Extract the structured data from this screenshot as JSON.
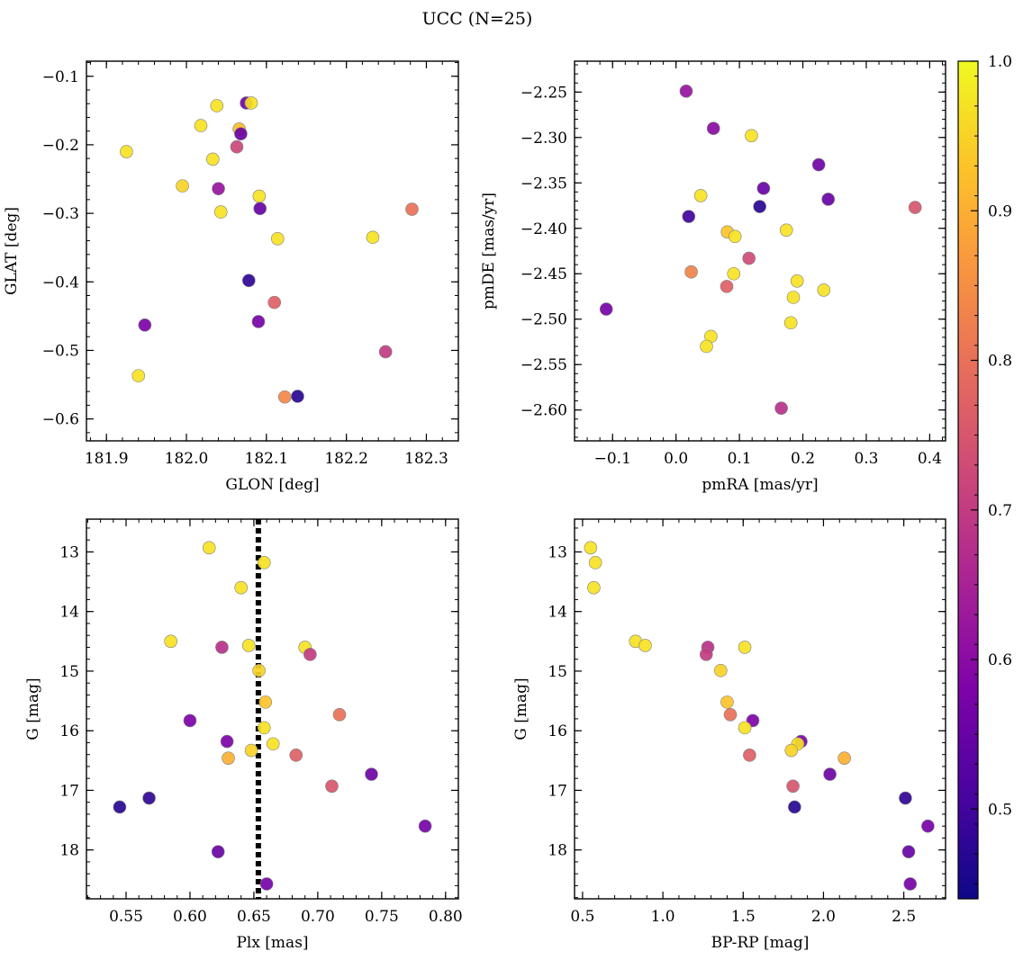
{
  "title": "UCC (N=25)",
  "colorbar": {
    "range": [
      0.44,
      1.0
    ],
    "ticks": [
      0.5,
      0.6,
      0.7,
      0.8,
      0.9,
      1.0
    ],
    "tick_labels": [
      "0.5",
      "0.6",
      "0.7",
      "0.8",
      "0.9",
      "1.0"
    ],
    "colormap": "plasma"
  },
  "chart_data": [
    {
      "type": "scatter",
      "xlabel": "GLON [deg]",
      "ylabel": "GLAT [deg]",
      "xlim": [
        181.875,
        182.34
      ],
      "ylim": [
        -0.632,
        -0.078
      ],
      "xticks": [
        181.9,
        182.0,
        182.1,
        182.2,
        182.3
      ],
      "xtick_labels": [
        "181.9",
        "182.0",
        "182.1",
        "182.2",
        "182.3"
      ],
      "yticks": [
        -0.1,
        -0.2,
        -0.3,
        -0.4,
        -0.5,
        -0.6
      ],
      "ytick_labels": [
        "−0.1",
        "−0.2",
        "−0.3",
        "−0.4",
        "−0.5",
        "−0.6"
      ],
      "points": [
        {
          "x": 181.925,
          "y": -0.21,
          "c": 0.97
        },
        {
          "x": 181.995,
          "y": -0.26,
          "c": 0.95
        },
        {
          "x": 182.018,
          "y": -0.172,
          "c": 0.97
        },
        {
          "x": 182.033,
          "y": -0.221,
          "c": 0.97
        },
        {
          "x": 182.038,
          "y": -0.143,
          "c": 0.97
        },
        {
          "x": 182.04,
          "y": -0.264,
          "c": 0.62
        },
        {
          "x": 182.043,
          "y": -0.298,
          "c": 0.97
        },
        {
          "x": 182.063,
          "y": -0.203,
          "c": 0.72
        },
        {
          "x": 182.066,
          "y": -0.177,
          "c": 0.92
        },
        {
          "x": 182.068,
          "y": -0.184,
          "c": 0.55
        },
        {
          "x": 182.075,
          "y": -0.139,
          "c": 0.57
        },
        {
          "x": 182.081,
          "y": -0.139,
          "c": 0.97
        },
        {
          "x": 182.091,
          "y": -0.275,
          "c": 0.97
        },
        {
          "x": 182.092,
          "y": -0.293,
          "c": 0.55
        },
        {
          "x": 182.078,
          "y": -0.398,
          "c": 0.48
        },
        {
          "x": 182.11,
          "y": -0.43,
          "c": 0.77
        },
        {
          "x": 182.114,
          "y": -0.337,
          "c": 0.97
        },
        {
          "x": 182.09,
          "y": -0.458,
          "c": 0.57
        },
        {
          "x": 182.233,
          "y": -0.335,
          "c": 0.97
        },
        {
          "x": 182.282,
          "y": -0.294,
          "c": 0.8
        },
        {
          "x": 182.249,
          "y": -0.502,
          "c": 0.7
        },
        {
          "x": 181.948,
          "y": -0.463,
          "c": 0.58
        },
        {
          "x": 181.94,
          "y": -0.537,
          "c": 0.97
        },
        {
          "x": 182.123,
          "y": -0.568,
          "c": 0.84
        },
        {
          "x": 182.139,
          "y": -0.567,
          "c": 0.47
        }
      ]
    },
    {
      "type": "scatter",
      "xlabel": "pmRA [mas/yr]",
      "ylabel": "pmDE [mas/yr]",
      "xlim": [
        -0.16,
        0.425
      ],
      "ylim": [
        -2.634,
        -2.216
      ],
      "xticks": [
        -0.1,
        0.0,
        0.1,
        0.2,
        0.3,
        0.4
      ],
      "xtick_labels": [
        "−0.1",
        "0.0",
        "0.1",
        "0.2",
        "0.3",
        "0.4"
      ],
      "yticks": [
        -2.25,
        -2.3,
        -2.35,
        -2.4,
        -2.45,
        -2.5,
        -2.55,
        -2.6
      ],
      "ytick_labels": [
        "−2.25",
        "−2.30",
        "−2.35",
        "−2.40",
        "−2.45",
        "−2.50",
        "−2.55",
        "−2.60"
      ],
      "points": [
        {
          "x": 0.016,
          "y": -2.249,
          "c": 0.62
        },
        {
          "x": 0.059,
          "y": -2.29,
          "c": 0.6
        },
        {
          "x": 0.119,
          "y": -2.298,
          "c": 0.97
        },
        {
          "x": 0.225,
          "y": -2.33,
          "c": 0.56
        },
        {
          "x": 0.138,
          "y": -2.356,
          "c": 0.55
        },
        {
          "x": 0.24,
          "y": -2.368,
          "c": 0.55
        },
        {
          "x": 0.039,
          "y": -2.364,
          "c": 0.97
        },
        {
          "x": 0.377,
          "y": -2.377,
          "c": 0.75
        },
        {
          "x": 0.132,
          "y": -2.376,
          "c": 0.47
        },
        {
          "x": 0.02,
          "y": -2.387,
          "c": 0.5
        },
        {
          "x": 0.081,
          "y": -2.404,
          "c": 0.93
        },
        {
          "x": 0.093,
          "y": -2.409,
          "c": 0.97
        },
        {
          "x": 0.174,
          "y": -2.402,
          "c": 0.97
        },
        {
          "x": 0.115,
          "y": -2.433,
          "c": 0.73
        },
        {
          "x": 0.024,
          "y": -2.448,
          "c": 0.83
        },
        {
          "x": 0.091,
          "y": -2.45,
          "c": 0.97
        },
        {
          "x": 0.191,
          "y": -2.458,
          "c": 0.97
        },
        {
          "x": 0.08,
          "y": -2.464,
          "c": 0.77
        },
        {
          "x": 0.233,
          "y": -2.468,
          "c": 0.97
        },
        {
          "x": 0.185,
          "y": -2.476,
          "c": 0.97
        },
        {
          "x": -0.11,
          "y": -2.489,
          "c": 0.57
        },
        {
          "x": 0.181,
          "y": -2.504,
          "c": 0.97
        },
        {
          "x": 0.055,
          "y": -2.519,
          "c": 0.97
        },
        {
          "x": 0.048,
          "y": -2.53,
          "c": 0.97
        },
        {
          "x": 0.166,
          "y": -2.598,
          "c": 0.68
        }
      ]
    },
    {
      "type": "scatter",
      "xlabel": "Plx [mas]",
      "ylabel": "G [mag]",
      "xlim": [
        0.519,
        0.81
      ],
      "ylim": [
        18.82,
        12.45
      ],
      "xticks": [
        0.55,
        0.6,
        0.65,
        0.7,
        0.75,
        0.8
      ],
      "xtick_labels": [
        "0.55",
        "0.60",
        "0.65",
        "0.70",
        "0.75",
        "0.80"
      ],
      "yticks": [
        13,
        14,
        15,
        16,
        17,
        18
      ],
      "ytick_labels": [
        "13",
        "14",
        "15",
        "16",
        "17",
        "18"
      ],
      "vline": 0.6535,
      "points": [
        {
          "x": 0.615,
          "y": 12.93,
          "c": 0.97
        },
        {
          "x": 0.658,
          "y": 13.18,
          "c": 0.97
        },
        {
          "x": 0.64,
          "y": 13.6,
          "c": 0.97
        },
        {
          "x": 0.585,
          "y": 14.5,
          "c": 0.97
        },
        {
          "x": 0.625,
          "y": 14.6,
          "c": 0.68
        },
        {
          "x": 0.646,
          "y": 14.57,
          "c": 0.97
        },
        {
          "x": 0.69,
          "y": 14.6,
          "c": 0.97
        },
        {
          "x": 0.694,
          "y": 14.72,
          "c": 0.7
        },
        {
          "x": 0.654,
          "y": 14.99,
          "c": 0.95
        },
        {
          "x": 0.659,
          "y": 15.52,
          "c": 0.93
        },
        {
          "x": 0.717,
          "y": 15.73,
          "c": 0.8
        },
        {
          "x": 0.6,
          "y": 15.83,
          "c": 0.58
        },
        {
          "x": 0.658,
          "y": 15.95,
          "c": 0.97
        },
        {
          "x": 0.629,
          "y": 16.18,
          "c": 0.58
        },
        {
          "x": 0.665,
          "y": 16.22,
          "c": 0.97
        },
        {
          "x": 0.648,
          "y": 16.33,
          "c": 0.95
        },
        {
          "x": 0.683,
          "y": 16.41,
          "c": 0.77
        },
        {
          "x": 0.63,
          "y": 16.46,
          "c": 0.9
        },
        {
          "x": 0.711,
          "y": 16.93,
          "c": 0.75
        },
        {
          "x": 0.742,
          "y": 16.73,
          "c": 0.56
        },
        {
          "x": 0.568,
          "y": 17.13,
          "c": 0.48
        },
        {
          "x": 0.545,
          "y": 17.28,
          "c": 0.47
        },
        {
          "x": 0.784,
          "y": 17.6,
          "c": 0.57
        },
        {
          "x": 0.622,
          "y": 18.03,
          "c": 0.55
        },
        {
          "x": 0.66,
          "y": 18.57,
          "c": 0.57
        }
      ]
    },
    {
      "type": "scatter",
      "xlabel": "BP-RP [mag]",
      "ylabel": "G [mag]",
      "xlim": [
        0.45,
        2.76
      ],
      "ylim": [
        18.82,
        12.45
      ],
      "xticks": [
        0.5,
        1.0,
        1.5,
        2.0,
        2.5
      ],
      "xtick_labels": [
        "0.5",
        "1.0",
        "1.5",
        "2.0",
        "2.5"
      ],
      "yticks": [
        13,
        14,
        15,
        16,
        17,
        18
      ],
      "ytick_labels": [
        "13",
        "14",
        "15",
        "16",
        "17",
        "18"
      ],
      "points": [
        {
          "x": 0.55,
          "y": 12.93,
          "c": 0.97
        },
        {
          "x": 0.58,
          "y": 13.18,
          "c": 0.97
        },
        {
          "x": 0.57,
          "y": 13.6,
          "c": 0.97
        },
        {
          "x": 0.83,
          "y": 14.5,
          "c": 0.97
        },
        {
          "x": 0.89,
          "y": 14.57,
          "c": 0.97
        },
        {
          "x": 1.28,
          "y": 14.6,
          "c": 0.68
        },
        {
          "x": 1.27,
          "y": 14.72,
          "c": 0.7
        },
        {
          "x": 1.51,
          "y": 14.6,
          "c": 0.97
        },
        {
          "x": 1.36,
          "y": 14.99,
          "c": 0.95
        },
        {
          "x": 1.4,
          "y": 15.52,
          "c": 0.93
        },
        {
          "x": 1.42,
          "y": 15.73,
          "c": 0.8
        },
        {
          "x": 1.56,
          "y": 15.83,
          "c": 0.58
        },
        {
          "x": 1.51,
          "y": 15.95,
          "c": 0.97
        },
        {
          "x": 1.86,
          "y": 16.18,
          "c": 0.58
        },
        {
          "x": 1.84,
          "y": 16.22,
          "c": 0.97
        },
        {
          "x": 1.8,
          "y": 16.33,
          "c": 0.95
        },
        {
          "x": 1.54,
          "y": 16.41,
          "c": 0.77
        },
        {
          "x": 2.13,
          "y": 16.46,
          "c": 0.9
        },
        {
          "x": 1.81,
          "y": 16.93,
          "c": 0.75
        },
        {
          "x": 2.04,
          "y": 16.73,
          "c": 0.56
        },
        {
          "x": 2.51,
          "y": 17.13,
          "c": 0.48
        },
        {
          "x": 1.82,
          "y": 17.28,
          "c": 0.47
        },
        {
          "x": 2.65,
          "y": 17.6,
          "c": 0.57
        },
        {
          "x": 2.53,
          "y": 18.03,
          "c": 0.55
        },
        {
          "x": 2.54,
          "y": 18.57,
          "c": 0.57
        }
      ]
    }
  ]
}
